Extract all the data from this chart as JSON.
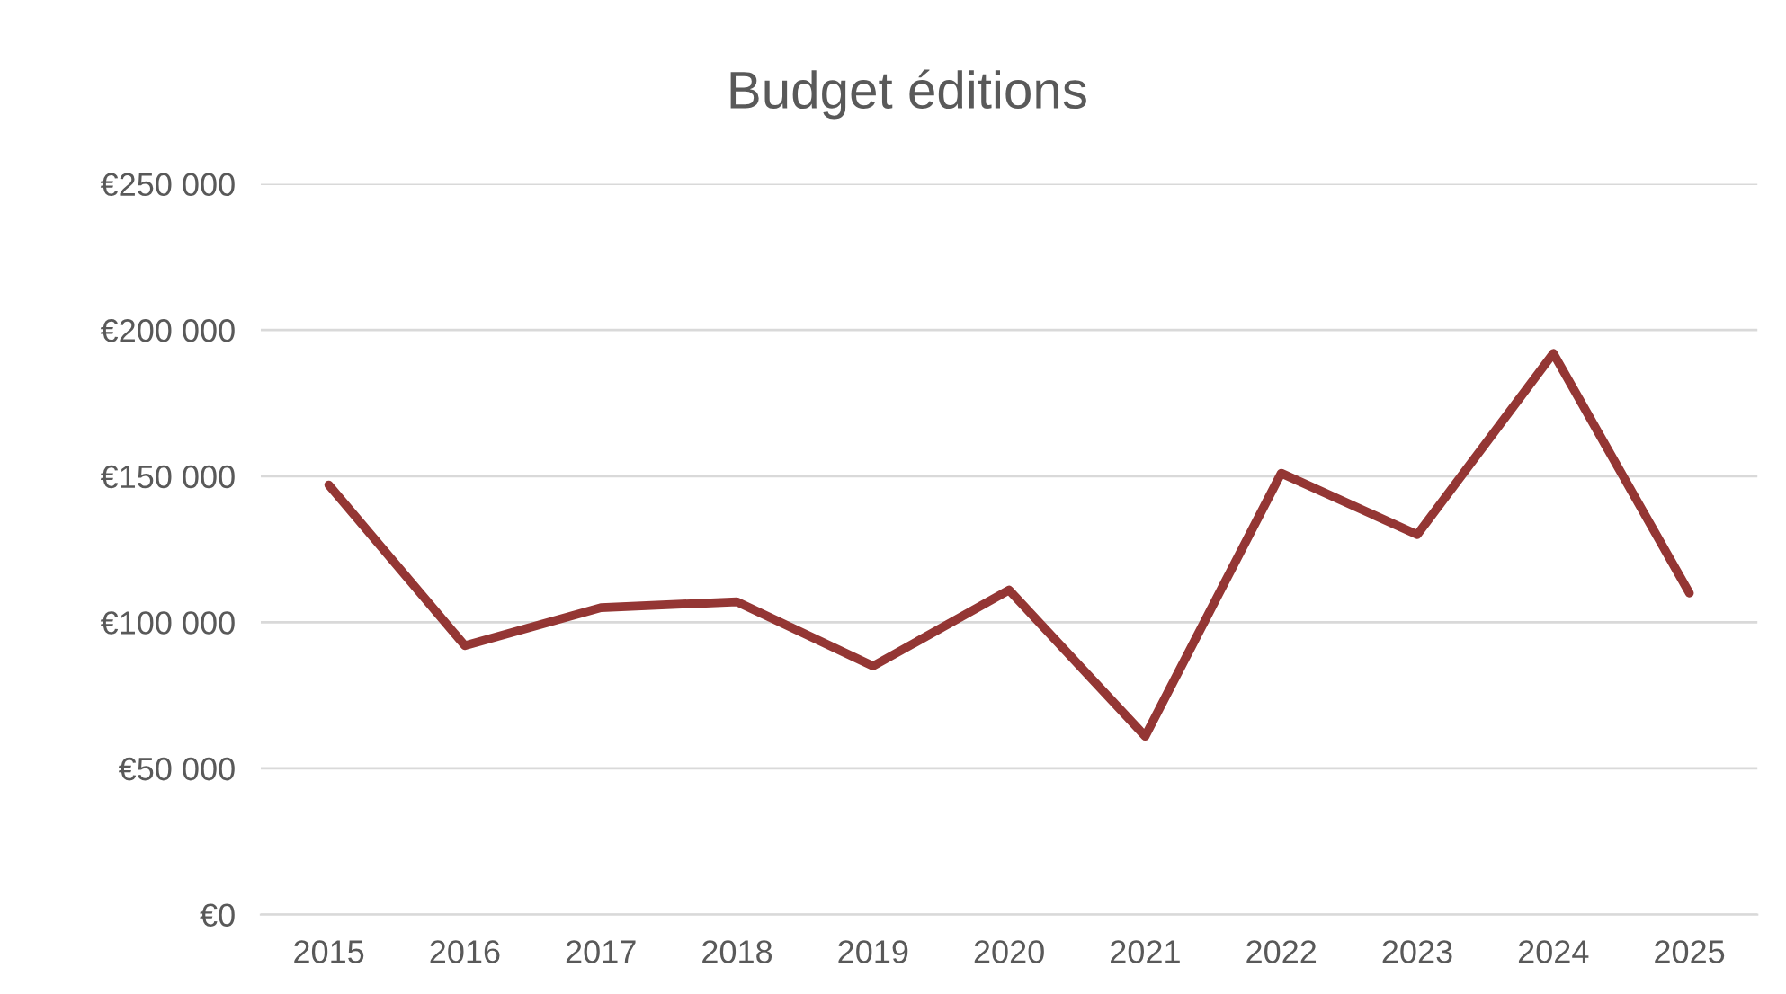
{
  "chart_data": {
    "type": "line",
    "title": "Budget éditions",
    "categories": [
      "2015",
      "2016",
      "2017",
      "2018",
      "2019",
      "2020",
      "2021",
      "2022",
      "2023",
      "2024",
      "2025"
    ],
    "series": [
      {
        "color": "#943634",
        "values": [
          147000,
          92000,
          105000,
          107000,
          85000,
          111000,
          61000,
          151000,
          130000,
          192000,
          110000
        ]
      }
    ],
    "ylim": [
      0,
      250000
    ],
    "yticks": [
      {
        "value": 0,
        "label": "€0"
      },
      {
        "value": 50000,
        "label": "€50 000"
      },
      {
        "value": 100000,
        "label": "€100 000"
      },
      {
        "value": 150000,
        "label": "€150 000"
      },
      {
        "value": 200000,
        "label": "€200 000"
      },
      {
        "value": 250000,
        "label": "€250 000"
      }
    ],
    "grid": "y",
    "line_style": "solid",
    "marker": "none"
  }
}
